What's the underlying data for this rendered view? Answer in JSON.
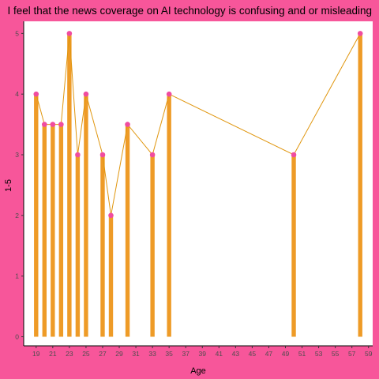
{
  "chart_data": {
    "type": "bar",
    "title": "I feel that the news coverage on AI technology is confusing and or misleading",
    "xlabel": "Age",
    "ylabel": "1-5",
    "x": [
      19,
      20,
      21,
      22,
      23,
      24,
      25,
      27,
      28,
      30,
      33,
      35,
      50,
      58
    ],
    "values": [
      4,
      3.5,
      3.5,
      3.5,
      5,
      3,
      4,
      3,
      2,
      3.5,
      3,
      4,
      3,
      5
    ],
    "x_ticks": [
      19,
      21,
      23,
      25,
      27,
      29,
      31,
      33,
      35,
      37,
      39,
      41,
      43,
      45,
      47,
      49,
      51,
      53,
      55,
      57,
      59
    ],
    "y_ticks": [
      0,
      1,
      2,
      3,
      4,
      5
    ],
    "xlim": [
      17.5,
      59.5
    ],
    "ylim": [
      -0.15,
      5.2
    ],
    "overlay": "line with points connecting bar tops",
    "grid": false,
    "legend": "none",
    "colors": {
      "background": "#f7569a",
      "panel": "#ffffff",
      "bar": "#ee9b27",
      "line": "#e0960e",
      "point": "#f04ca0"
    }
  }
}
